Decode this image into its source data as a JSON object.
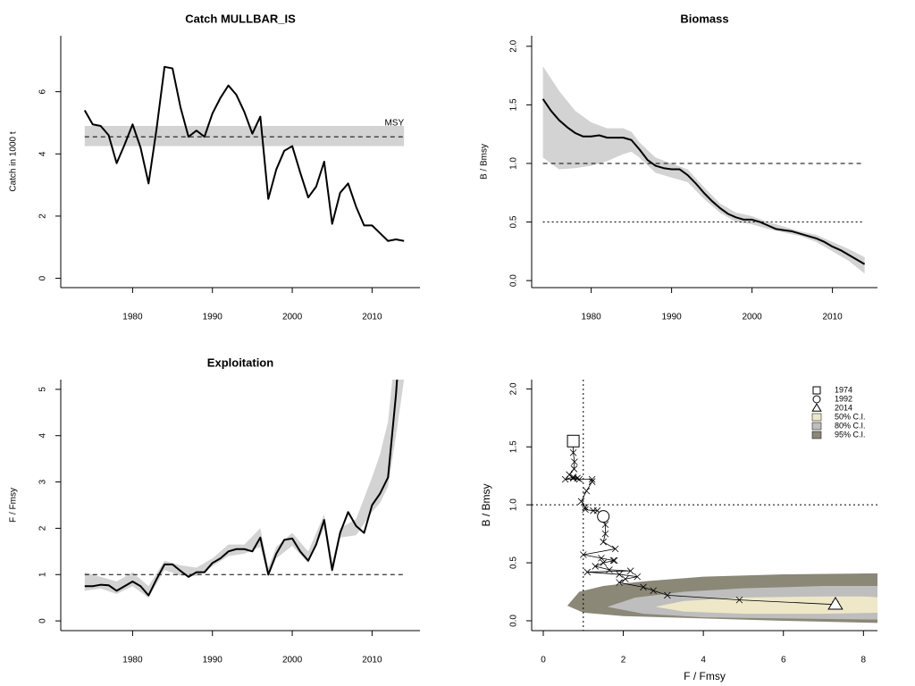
{
  "chart_data": [
    {
      "type": "line",
      "title": "Catch MULLBAR_IS",
      "y_label": "Catch in 1000 t",
      "x": [
        1974,
        1975,
        1976,
        1977,
        1978,
        1979,
        1980,
        1981,
        1982,
        1983,
        1984,
        1985,
        1986,
        1987,
        1988,
        1989,
        1990,
        1991,
        1992,
        1993,
        1994,
        1995,
        1996,
        1997,
        1998,
        1999,
        2000,
        2001,
        2002,
        2003,
        2004,
        2005,
        2006,
        2007,
        2008,
        2009,
        2010,
        2011,
        2012,
        2013,
        2014
      ],
      "series": [
        {
          "color": "#000000",
          "values": [
            5.4,
            4.95,
            4.9,
            4.6,
            3.7,
            4.3,
            4.95,
            4.2,
            3.05,
            4.8,
            6.8,
            6.75,
            5.5,
            4.55,
            4.75,
            4.55,
            5.3,
            5.8,
            6.2,
            5.9,
            5.35,
            4.65,
            5.2,
            2.55,
            3.5,
            4.1,
            4.25,
            3.4,
            2.6,
            2.95,
            3.75,
            1.75,
            2.75,
            3.05,
            2.3,
            1.7,
            1.7,
            1.45,
            1.2,
            1.25,
            1.2
          ]
        }
      ],
      "msy": {
        "label": "MSY",
        "value": 4.55,
        "lower": 4.25,
        "upper": 4.9,
        "color": "#d3d3d3"
      },
      "xlim": [
        1971,
        2016
      ],
      "xticks": [
        1980,
        1990,
        2000,
        2010
      ],
      "ylim": [
        -0.3,
        7.8
      ],
      "yticks": [
        0,
        2,
        4,
        6
      ]
    },
    {
      "type": "line",
      "title": "Biomass",
      "y_label": "B / Bmsy",
      "x": [
        1974,
        1975,
        1976,
        1977,
        1978,
        1979,
        1980,
        1981,
        1982,
        1983,
        1984,
        1985,
        1986,
        1987,
        1988,
        1989,
        1990,
        1991,
        1992,
        1993,
        1994,
        1995,
        1996,
        1997,
        1998,
        1999,
        2000,
        2001,
        2002,
        2003,
        2004,
        2005,
        2006,
        2007,
        2008,
        2009,
        2010,
        2011,
        2012,
        2013,
        2014
      ],
      "series": [
        {
          "color": "#000000",
          "values": [
            1.55,
            1.45,
            1.37,
            1.31,
            1.26,
            1.23,
            1.23,
            1.24,
            1.22,
            1.22,
            1.22,
            1.2,
            1.12,
            1.03,
            0.98,
            0.96,
            0.95,
            0.95,
            0.9,
            0.83,
            0.75,
            0.68,
            0.62,
            0.57,
            0.54,
            0.52,
            0.52,
            0.5,
            0.47,
            0.44,
            0.43,
            0.42,
            0.4,
            0.38,
            0.36,
            0.33,
            0.29,
            0.26,
            0.22,
            0.18,
            0.14
          ]
        }
      ],
      "band": {
        "color": "#d3d3d3",
        "x": [
          1974,
          1976,
          1978,
          1980,
          1982,
          1984,
          1985,
          1986,
          1988,
          1990,
          1992,
          1994,
          1996,
          1998,
          2000,
          2002,
          2004,
          2006,
          2008,
          2010,
          2012,
          2014
        ],
        "upper": [
          1.83,
          1.62,
          1.45,
          1.35,
          1.3,
          1.3,
          1.27,
          1.18,
          1.05,
          1.0,
          0.95,
          0.8,
          0.66,
          0.58,
          0.55,
          0.5,
          0.46,
          0.42,
          0.39,
          0.33,
          0.27,
          0.2
        ],
        "lower": [
          1.05,
          0.95,
          0.96,
          0.98,
          1.02,
          1.08,
          1.1,
          1.05,
          0.92,
          0.88,
          0.84,
          0.7,
          0.58,
          0.5,
          0.48,
          0.44,
          0.41,
          0.38,
          0.33,
          0.25,
          0.17,
          0.06
        ]
      },
      "hlines": [
        {
          "value": 1,
          "style": "dashed"
        },
        {
          "value": 0.5,
          "style": "dotted"
        }
      ],
      "xlim": [
        1972.6,
        2015.6
      ],
      "xticks": [
        1980,
        1990,
        2000,
        2010
      ],
      "ylim": [
        -0.06,
        2.09
      ],
      "yticks": [
        {
          "value": 0,
          "label": "0.0"
        },
        0.5,
        {
          "value": 1,
          "label": "1.0"
        },
        1.5,
        {
          "value": 2,
          "label": "2.0"
        }
      ]
    },
    {
      "type": "line",
      "title": "Exploitation",
      "y_label": "F / Fmsy",
      "x": [
        1974,
        1975,
        1976,
        1977,
        1978,
        1979,
        1980,
        1981,
        1982,
        1983,
        1984,
        1985,
        1986,
        1987,
        1988,
        1989,
        1990,
        1991,
        1992,
        1993,
        1994,
        1995,
        1996,
        1997,
        1998,
        1999,
        2000,
        2001,
        2002,
        2003,
        2004,
        2005,
        2006,
        2007,
        2008,
        2009,
        2010,
        2011,
        2012,
        2013,
        2014
      ],
      "series": [
        {
          "color": "#000000",
          "values": [
            0.75,
            0.75,
            0.78,
            0.77,
            0.65,
            0.75,
            0.85,
            0.75,
            0.55,
            0.9,
            1.22,
            1.22,
            1.08,
            0.95,
            1.05,
            1.05,
            1.25,
            1.35,
            1.5,
            1.55,
            1.55,
            1.5,
            1.8,
            1.0,
            1.45,
            1.75,
            1.78,
            1.5,
            1.3,
            1.65,
            2.18,
            1.1,
            1.9,
            2.35,
            2.05,
            1.9,
            2.5,
            2.75,
            3.1,
            4.9,
            7.3
          ]
        }
      ],
      "band": {
        "color": "#d3d3d3",
        "x": [
          1974,
          1976,
          1978,
          1980,
          1982,
          1984,
          1986,
          1988,
          1990,
          1992,
          1994,
          1996,
          1997,
          1998,
          2000,
          2002,
          2004,
          2005,
          2006,
          2008,
          2010,
          2011,
          2012,
          2013,
          2014
        ],
        "upper": [
          1.05,
          0.95,
          0.85,
          1.05,
          0.75,
          1.3,
          1.2,
          1.15,
          1.35,
          1.65,
          1.65,
          2.0,
          1.15,
          1.6,
          1.9,
          1.5,
          2.3,
          1.25,
          2.0,
          2.2,
          3.1,
          3.6,
          4.3,
          6.0,
          7.0
        ],
        "lower": [
          0.65,
          0.7,
          0.58,
          0.75,
          0.5,
          1.1,
          0.98,
          0.97,
          1.18,
          1.4,
          1.45,
          1.6,
          0.95,
          1.35,
          1.62,
          1.25,
          2.0,
          1.0,
          1.8,
          1.85,
          2.35,
          2.55,
          2.9,
          4.0,
          5.2
        ]
      },
      "hlines": [
        {
          "value": 1,
          "style": "dashed"
        }
      ],
      "xlim": [
        1971,
        2016
      ],
      "xticks": [
        1980,
        1990,
        2000,
        2010
      ],
      "ylim": [
        -0.21,
        5.21
      ],
      "yticks": [
        0,
        1,
        2,
        3,
        4,
        5
      ]
    },
    {
      "type": "phase",
      "x_label": "F / Fmsy",
      "y_label": "B / Bmsy",
      "years": [
        1974,
        1975,
        1976,
        1977,
        1978,
        1979,
        1980,
        1981,
        1982,
        1983,
        1984,
        1985,
        1986,
        1987,
        1988,
        1989,
        1990,
        1991,
        1992,
        1993,
        1994,
        1995,
        1996,
        1997,
        1998,
        1999,
        2000,
        2001,
        2002,
        2003,
        2004,
        2005,
        2006,
        2007,
        2008,
        2009,
        2010,
        2011,
        2012,
        2013,
        2014
      ],
      "x": [
        0.75,
        0.75,
        0.78,
        0.77,
        0.65,
        0.75,
        0.85,
        0.75,
        0.55,
        0.9,
        1.22,
        1.22,
        1.08,
        0.95,
        1.05,
        1.05,
        1.25,
        1.35,
        1.5,
        1.55,
        1.55,
        1.5,
        1.8,
        1.0,
        1.45,
        1.75,
        1.78,
        1.5,
        1.3,
        1.65,
        2.18,
        1.1,
        1.9,
        2.35,
        2.05,
        1.9,
        2.5,
        2.75,
        3.1,
        4.9,
        7.3
      ],
      "values": [
        1.55,
        1.45,
        1.37,
        1.31,
        1.26,
        1.23,
        1.23,
        1.24,
        1.22,
        1.22,
        1.22,
        1.2,
        1.12,
        1.03,
        0.98,
        0.96,
        0.95,
        0.95,
        0.9,
        0.83,
        0.75,
        0.68,
        0.62,
        0.57,
        0.54,
        0.52,
        0.52,
        0.5,
        0.47,
        0.44,
        0.43,
        0.42,
        0.4,
        0.38,
        0.36,
        0.33,
        0.29,
        0.26,
        0.22,
        0.18,
        0.14
      ],
      "highlights": [
        {
          "year": 1974,
          "marker": "square"
        },
        {
          "year": 1992,
          "marker": "circle"
        },
        {
          "year": 2014,
          "marker": "triangle"
        }
      ],
      "regions": [
        {
          "name": "50% C.I.",
          "color": "#eee8c8",
          "x": [
            2.8,
            3.5,
            5,
            7,
            8,
            8.5,
            8.5,
            7,
            5,
            3.5
          ],
          "y": [
            0.12,
            0.17,
            0.2,
            0.21,
            0.21,
            0.2,
            0.07,
            0.06,
            0.06,
            0.08
          ]
        },
        {
          "name": "80% C.I.",
          "color": "#bebebe",
          "x": [
            1.6,
            2.3,
            3.5,
            5,
            7,
            8.5,
            8.5,
            6,
            4,
            2.5
          ],
          "y": [
            0.12,
            0.2,
            0.25,
            0.28,
            0.3,
            0.3,
            0.01,
            0.02,
            0.03,
            0.06
          ]
        },
        {
          "name": "95% C.I.",
          "color": "#8b8878",
          "x": [
            0.6,
            0.9,
            1.5,
            2.5,
            4,
            6,
            8.5,
            8.5,
            6,
            4,
            2,
            1
          ],
          "y": [
            0.13,
            0.25,
            0.3,
            0.34,
            0.38,
            0.4,
            0.41,
            -0.02,
            0,
            0.02,
            0.04,
            0.07
          ]
        }
      ],
      "hlines": [
        {
          "value": 1,
          "style": "dotted"
        }
      ],
      "vlines": [
        {
          "value": 1,
          "style": "dotted"
        }
      ],
      "xlim": [
        -0.29,
        8.35
      ],
      "xticks": [
        0,
        2,
        4,
        6,
        8
      ],
      "ylim": [
        -0.085,
        2.08
      ],
      "yticks": [
        {
          "value": 0,
          "label": "0.0"
        },
        0.5,
        {
          "value": 1,
          "label": "1.0"
        },
        1.5,
        {
          "value": 2,
          "label": "2.0"
        }
      ]
    }
  ]
}
